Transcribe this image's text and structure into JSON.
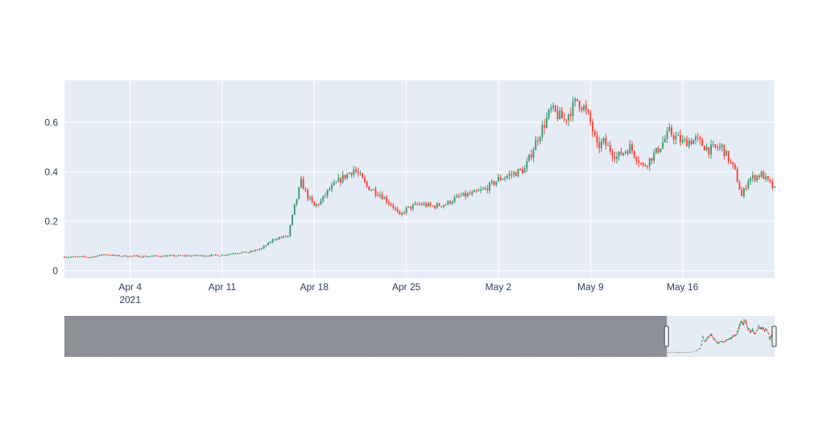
{
  "chart_data": {
    "type": "candlestick",
    "title": "",
    "xlabel": "",
    "ylabel": "",
    "x_range": [
      "2021-03-30",
      "2021-05-23"
    ],
    "ylim": [
      -0.03,
      0.77
    ],
    "y_ticks": [
      0,
      0.2,
      0.4,
      0.6
    ],
    "y_tick_labels": [
      "0",
      "0.2",
      "0.4",
      "0.6"
    ],
    "x_ticks": [
      {
        "date": "2021-04-04",
        "label": "Apr 4",
        "sublabel": "2021"
      },
      {
        "date": "2021-04-11",
        "label": "Apr 11",
        "sublabel": ""
      },
      {
        "date": "2021-04-18",
        "label": "Apr 18",
        "sublabel": ""
      },
      {
        "date": "2021-04-25",
        "label": "Apr 25",
        "sublabel": ""
      },
      {
        "date": "2021-05-02",
        "label": "May 2",
        "sublabel": ""
      },
      {
        "date": "2021-05-09",
        "label": "May 9",
        "sublabel": ""
      },
      {
        "date": "2021-05-16",
        "label": "May 16",
        "sublabel": ""
      }
    ],
    "grid": true,
    "legend": "none",
    "colors": {
      "increasing": "#3d9970",
      "decreasing": "#ff4136",
      "plot_bg": "#e5ecf6",
      "grid": "#ffffff",
      "tick_text": "#2a3f5f",
      "rangeslider_mask": "#888b90"
    },
    "series_close": [
      [
        "2021-03-30",
        0.056
      ],
      [
        "2021-04-01",
        0.055
      ],
      [
        "2021-04-02",
        0.066
      ],
      [
        "2021-04-03",
        0.06
      ],
      [
        "2021-04-05",
        0.058
      ],
      [
        "2021-04-07",
        0.06
      ],
      [
        "2021-04-09",
        0.061
      ],
      [
        "2021-04-11",
        0.063
      ],
      [
        "2021-04-12",
        0.072
      ],
      [
        "2021-04-13",
        0.075
      ],
      [
        "2021-04-14",
        0.09
      ],
      [
        "2021-04-15",
        0.13
      ],
      [
        "2021-04-16",
        0.14
      ],
      [
        "2021-04-16T12",
        0.26
      ],
      [
        "2021-04-17",
        0.36
      ],
      [
        "2021-04-17T12",
        0.3
      ],
      [
        "2021-04-18",
        0.26
      ],
      [
        "2021-04-18T12",
        0.28
      ],
      [
        "2021-04-19",
        0.32
      ],
      [
        "2021-04-20",
        0.37
      ],
      [
        "2021-04-21",
        0.41
      ],
      [
        "2021-04-21T12",
        0.38
      ],
      [
        "2021-04-22",
        0.34
      ],
      [
        "2021-04-23",
        0.31
      ],
      [
        "2021-04-24",
        0.26
      ],
      [
        "2021-04-24T12",
        0.22
      ],
      [
        "2021-04-25",
        0.25
      ],
      [
        "2021-04-26",
        0.27
      ],
      [
        "2021-04-27",
        0.26
      ],
      [
        "2021-04-28",
        0.27
      ],
      [
        "2021-04-29",
        0.3
      ],
      [
        "2021-04-30",
        0.31
      ],
      [
        "2021-05-01",
        0.33
      ],
      [
        "2021-05-02",
        0.37
      ],
      [
        "2021-05-03",
        0.39
      ],
      [
        "2021-05-04",
        0.41
      ],
      [
        "2021-05-05",
        0.54
      ],
      [
        "2021-05-06",
        0.65
      ],
      [
        "2021-05-07",
        0.61
      ],
      [
        "2021-05-08",
        0.69
      ],
      [
        "2021-05-08T12",
        0.66
      ],
      [
        "2021-05-09",
        0.6
      ],
      [
        "2021-05-09T12",
        0.5
      ],
      [
        "2021-05-10",
        0.52
      ],
      [
        "2021-05-11",
        0.46
      ],
      [
        "2021-05-12",
        0.5
      ],
      [
        "2021-05-13",
        0.42
      ],
      [
        "2021-05-14",
        0.48
      ],
      [
        "2021-05-15",
        0.56
      ],
      [
        "2021-05-16",
        0.52
      ],
      [
        "2021-05-17",
        0.53
      ],
      [
        "2021-05-18",
        0.49
      ],
      [
        "2021-05-19",
        0.5
      ],
      [
        "2021-05-20",
        0.4
      ],
      [
        "2021-05-20T12",
        0.3
      ],
      [
        "2021-05-21",
        0.37
      ],
      [
        "2021-05-22",
        0.39
      ],
      [
        "2021-05-23",
        0.33
      ]
    ],
    "rangeslider": {
      "selected_start": "2021-03-30",
      "selected_end": "2021-05-23",
      "full_range_start": "2020-06-01",
      "full_range_end": "2021-05-23"
    }
  }
}
